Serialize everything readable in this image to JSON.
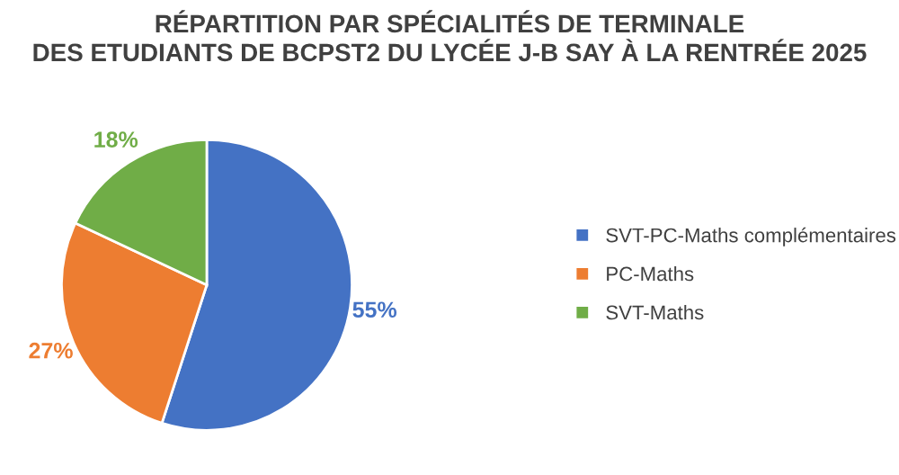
{
  "chart_data": {
    "type": "pie",
    "title": "RÉPARTITION PAR SPÉCIALITÉS DE TERMINALE\nDES ETUDIANTS DE BCPST2 DU LYCÉE J-B SAY À LA RENTRÉE 2025",
    "categories": [
      "SVT-PC-Maths complémentaires",
      "PC-Maths",
      "SVT-Maths"
    ],
    "values": [
      55,
      27,
      18
    ],
    "colors": [
      "#4472c4",
      "#ed7d31",
      "#70ad47"
    ],
    "value_labels": [
      "55%",
      "27%",
      "18%"
    ],
    "legend": "right"
  }
}
